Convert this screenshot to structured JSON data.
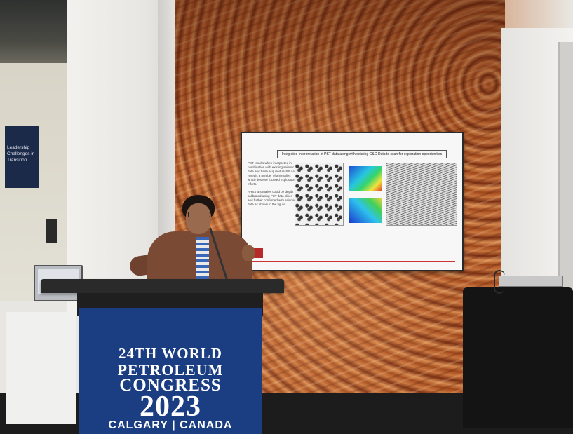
{
  "podium": {
    "line1": "24TH WORLD",
    "line2": "PETROLEUM",
    "line3": "CONGRESS",
    "line4": "2023",
    "line5": "CALGARY | CANADA"
  },
  "slide": {
    "title": "Integrated Interpretation of PST data along with existing G&G Data to scan for exploration opportunities",
    "bullet1": "PST results when interpreted in combination with existing seismic data and fresh acquired AHSS data reveals a number of anomalies which deserve focused exploratory efforts.",
    "bullet2": "AHSS anomalies could be depth calibrated using PST data slices and further confirmed with seismic data as shown in the figure."
  },
  "sign": {
    "text": "Leadership Challenges in Transition"
  },
  "colors": {
    "podium_blue": "#1b3d82",
    "wood_wall": "#a8521f"
  }
}
